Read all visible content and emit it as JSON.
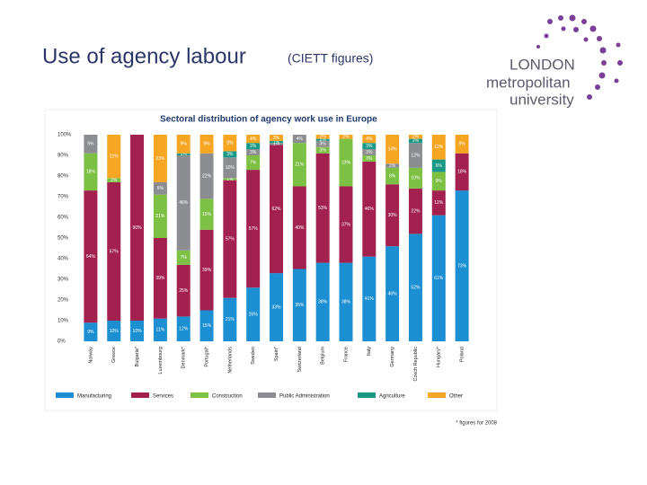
{
  "slide_title": "Use of agency labour",
  "slide_subtitle": "(CIETT figures)",
  "logo": [
    "LONDON",
    "metropolitan",
    "university"
  ],
  "chart_data": {
    "type": "stacked_bar",
    "title": "Sectoral distribution of agency work use in Europe",
    "categories": [
      "Norway",
      "Greece",
      "Bulgaria*",
      "Luxembourg",
      "Denmark*",
      "Portugal*",
      "Netherlands",
      "Sweden",
      "Spain*",
      "Switzerland",
      "Belgium",
      "France",
      "Italy",
      "Germany",
      "Czech Republic",
      "Hungary*",
      "Poland"
    ],
    "series": [
      {
        "name": "Manufacturing",
        "color": "#1b8fd2",
        "values": [
          9,
          10,
          10,
          11,
          12,
          15,
          21,
          26,
          33,
          35,
          38,
          38,
          41,
          46,
          52,
          61,
          73
        ],
        "value_labels": [
          "9%",
          "10%",
          "10%",
          "11%",
          "12%",
          "15%",
          "21%",
          "26%",
          "33%",
          "35%",
          "38%",
          "38%",
          "41%",
          "46%",
          "52%",
          "61%",
          "73%"
        ]
      },
      {
        "name": "Services",
        "color": "#a3214f",
        "values": [
          64,
          67,
          90,
          39,
          25,
          39,
          57,
          57,
          62,
          40,
          53,
          37,
          46,
          30,
          22,
          12,
          18
        ],
        "value_labels": [
          "64%",
          "67%",
          "90%",
          "39%",
          "25%",
          "39%",
          "57%",
          "57%",
          "62%",
          "40%",
          "53%",
          "37%",
          "46%",
          "30%",
          "22%",
          "12%",
          "18%"
        ]
      },
      {
        "name": "Construction",
        "color": "#7cc143",
        "values": [
          18,
          2,
          0,
          21,
          7,
          15,
          1,
          7,
          0,
          21,
          3,
          23,
          3,
          8,
          10,
          9,
          0
        ],
        "value_labels": [
          "18%",
          "2%",
          null,
          "21%",
          "7%",
          "15%",
          "1%",
          "7%",
          null,
          "21%",
          "3%",
          "23%",
          "3%",
          "8%",
          "10%",
          "9%",
          null
        ]
      },
      {
        "name": "Public Administration",
        "color": "#8b8d90",
        "values": [
          9,
          0,
          0,
          6,
          46,
          22,
          10,
          3,
          1,
          4,
          3,
          0,
          3,
          2,
          12,
          0,
          0
        ],
        "value_labels": [
          "9%",
          null,
          null,
          "6%",
          "46%",
          "22%",
          "10%",
          "3%",
          "1%",
          "4%",
          "3%",
          null,
          "3%",
          "2%",
          "12%",
          null,
          null
        ]
      },
      {
        "name": "Agriculture",
        "color": "#1a9886",
        "values": [
          0,
          0,
          0,
          0,
          1,
          0,
          3,
          3,
          1,
          0,
          1,
          0,
          3,
          0,
          2,
          6,
          0
        ],
        "value_labels": [
          null,
          null,
          null,
          null,
          "1%",
          null,
          "3%",
          "3%",
          "1%",
          null,
          "1%",
          null,
          "3%",
          null,
          "2%",
          "6%",
          null
        ]
      },
      {
        "name": "Other",
        "color": "#f6a623",
        "values": [
          0,
          21,
          0,
          23,
          9,
          9,
          8,
          4,
          3,
          0,
          2,
          2,
          4,
          14,
          2,
          12,
          9
        ],
        "value_labels": [
          null,
          "21%",
          null,
          "23%",
          "9%",
          "9%",
          "8%",
          "4%",
          "3%",
          null,
          "2%",
          "2%",
          "4%",
          "14%",
          "2%",
          "12%",
          "9%"
        ]
      }
    ],
    "ylim": [
      0,
      100
    ],
    "yticks": [
      {
        "value": 0,
        "label": "0%"
      },
      {
        "value": 10,
        "label": "10%"
      },
      {
        "value": 20,
        "label": "20%"
      },
      {
        "value": 30,
        "label": "30%"
      },
      {
        "value": 40,
        "label": "40%"
      },
      {
        "value": 50,
        "label": "50%"
      },
      {
        "value": 60,
        "label": "60%"
      },
      {
        "value": 70,
        "label": "70%"
      },
      {
        "value": 80,
        "label": "80%"
      },
      {
        "value": 90,
        "label": "90%"
      },
      {
        "value": 100,
        "label": "100%"
      }
    ],
    "footnote": "* figures for 2008"
  }
}
